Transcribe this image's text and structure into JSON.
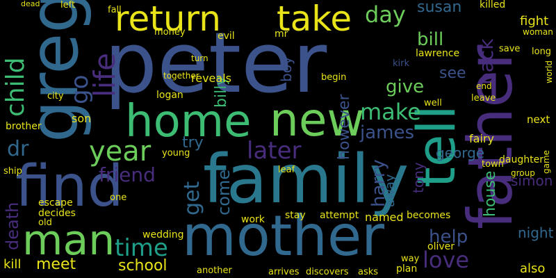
{
  "palette": {
    "background": "#000000",
    "yellow": "#e8e419",
    "green": "#6ccd5a",
    "lime": "#3dbc74",
    "teal": "#1f9e89",
    "cyan": "#2a788e",
    "blue": "#31688e",
    "indigo": "#3b528b",
    "purple": "#472d7b",
    "darkpurple": "#440154"
  },
  "words": [
    "peter",
    "family",
    "find",
    "mother",
    "father",
    "greg",
    "home",
    "new",
    "man",
    "return",
    "take",
    "tell",
    "life",
    "year",
    "child",
    "friend",
    "time",
    "later",
    "go",
    "day",
    "make",
    "get",
    "love",
    "help",
    "school",
    "dr",
    "james",
    "however",
    "harry",
    "bill",
    "susan",
    "give",
    "boy",
    "billy",
    "back",
    "see",
    "house",
    "george",
    "come",
    "tony",
    "simon",
    "night",
    "death",
    "try",
    "meet",
    "kill",
    "away",
    "escape",
    "decides",
    "old",
    "wedding",
    "named",
    "attempt",
    "becomes",
    "begin",
    "reveals",
    "logan",
    "son",
    "fairy",
    "next",
    "also",
    "fight",
    "lawrence",
    "kirk",
    "save",
    "long",
    "world",
    "well",
    "another",
    "arrives",
    "discovers",
    "asks",
    "plan",
    "way",
    "oliver",
    "young",
    "leaf",
    "work",
    "stay",
    "city",
    "brother",
    "ship",
    "one",
    "town",
    "daughter",
    "group",
    "game",
    "leave",
    "end",
    "evil",
    "mr",
    "money",
    "turn",
    "together",
    "killed",
    "woman",
    "left",
    "fall",
    "dead"
  ]
}
